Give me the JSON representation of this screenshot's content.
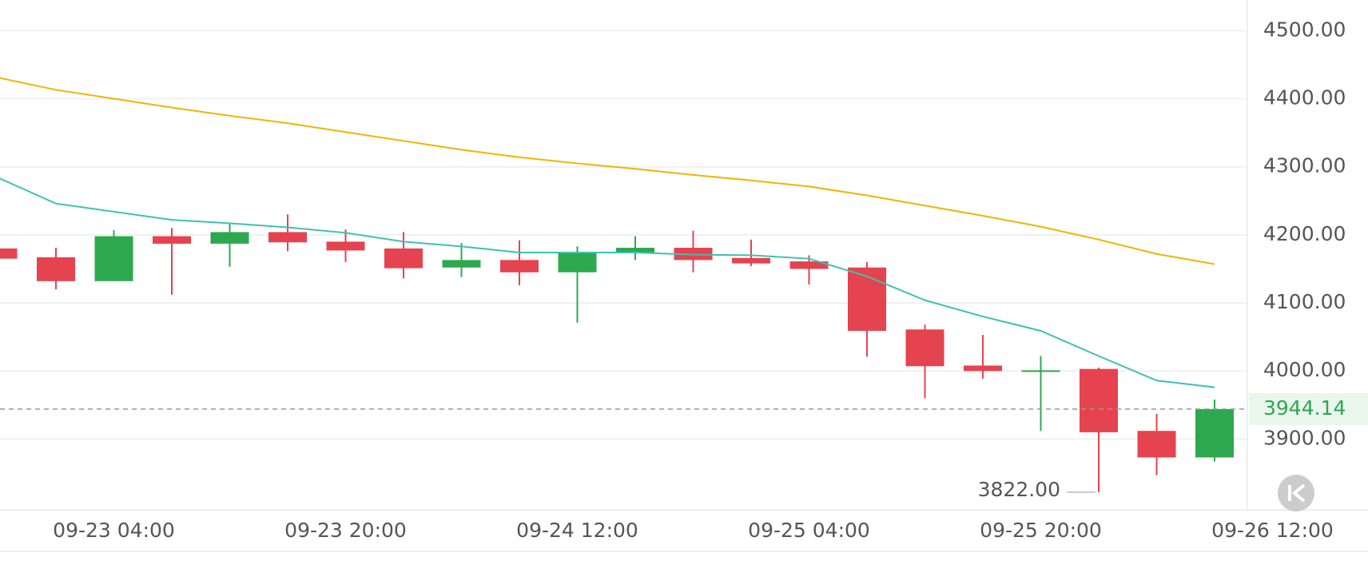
{
  "chart_data": {
    "type": "candlestick",
    "categories": [
      null,
      null,
      "09-23 04:00",
      null,
      null,
      null,
      "09-23 20:00",
      null,
      null,
      null,
      "09-24 12:00",
      null,
      null,
      null,
      "09-25 04:00",
      null,
      null,
      null,
      "09-25 20:00",
      null,
      null,
      null,
      "09-26 12:00"
    ],
    "open": [
      4180,
      4167,
      4132,
      4198,
      4187,
      4204,
      4190,
      4180,
      4152,
      4163,
      4145,
      4174,
      4181,
      4166,
      4161,
      4152,
      4061,
      4008,
      4000,
      4003,
      3912,
      3873,
      null
    ],
    "high": [
      4182,
      4181,
      4207,
      4210,
      4216,
      4230,
      4208,
      4204,
      4188,
      4192,
      4183,
      4198,
      4206,
      4193,
      4170,
      4160,
      4068,
      4053,
      4022,
      4005,
      3937,
      3958,
      null
    ],
    "low": [
      4165,
      4120,
      4132,
      4112,
      4153,
      4176,
      4160,
      4136,
      4138,
      4126,
      4071,
      4163,
      4145,
      4154,
      4127,
      4021,
      3960,
      3989,
      3912,
      3822,
      3847,
      3867,
      null
    ],
    "close": [
      4165,
      4132,
      4198,
      4187,
      4204,
      4189,
      4177,
      4151,
      4163,
      4145,
      4174,
      4181,
      4163,
      4158,
      4150,
      4059,
      4007,
      4000,
      4001,
      3910,
      3873,
      3944.14,
      null
    ],
    "up_color": "#2ea84f",
    "down_color": "#e5434f",
    "ma_lines": [
      {
        "color": "#3cc2b0",
        "values": [
          4284,
          4246,
          4234,
          4222,
          4217,
          4211,
          4203,
          4190,
          4183,
          4174,
          4174,
          4174,
          4171,
          4170,
          4165,
          4139,
          4104,
          4080,
          4059,
          4022,
          3986,
          3976,
          null
        ]
      },
      {
        "color": "#f0b400",
        "values": [
          4431,
          4413,
          4400,
          4387,
          4375,
          4364,
          4351,
          4338,
          4325,
          4314,
          4305,
          4297,
          4288,
          4280,
          4271,
          4258,
          4243,
          4228,
          4212,
          4193,
          4172,
          4157,
          null
        ]
      }
    ],
    "ylim": [
      3796,
      4545
    ],
    "yticks": [
      {
        "value": 3900,
        "label": "3900.00"
      },
      {
        "value": 4000,
        "label": "4000.00"
      },
      {
        "value": 4100,
        "label": "4100.00"
      },
      {
        "value": 4200,
        "label": "4200.00"
      },
      {
        "value": 4300,
        "label": "4300.00"
      },
      {
        "value": 4400,
        "label": "4400.00"
      },
      {
        "value": 4500,
        "label": "4500.00"
      }
    ],
    "grid": true,
    "last_price": 3944.14,
    "low_label": {
      "value": 3822,
      "label": "3822.00"
    }
  }
}
